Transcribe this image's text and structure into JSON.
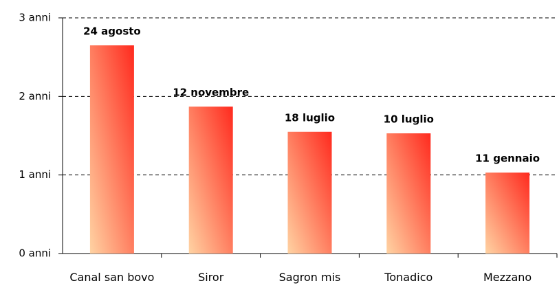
{
  "chart_data": {
    "type": "bar",
    "categories": [
      "Canal san bovo",
      "Siror",
      "Sagron mis",
      "Tonadico",
      "Mezzano"
    ],
    "values": [
      2.65,
      1.87,
      1.55,
      1.53,
      1.03
    ],
    "annotations": [
      "24 agosto",
      "12 novembre",
      "18 luglio",
      "10 luglio",
      "11 gennaio"
    ],
    "colors": [
      "#ff2a1e",
      "#ffd3a3"
    ],
    "ylim": [
      0,
      3
    ],
    "yticks": [
      {
        "value": 0,
        "label": "0 anni"
      },
      {
        "value": 1,
        "label": "1 anni"
      },
      {
        "value": 2,
        "label": "2 anni"
      },
      {
        "value": 3,
        "label": "3 anni"
      }
    ],
    "grid": true
  }
}
